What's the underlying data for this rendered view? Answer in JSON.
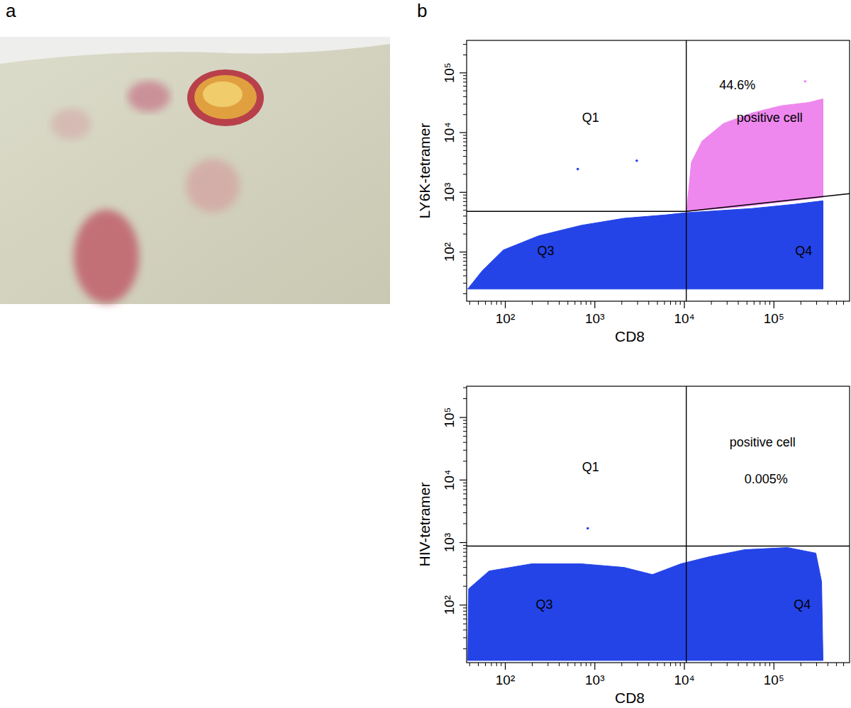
{
  "panel_labels": [
    "a",
    "b"
  ],
  "chart_data": [
    {
      "type": "scatter",
      "xlabel": "CD8",
      "ylabel": "LY6K-tetramer",
      "log": true,
      "xlim": [
        37,
        700000
      ],
      "ylim": [
        15,
        350000
      ],
      "xticks": [
        {
          "value": 100,
          "label": "10²"
        },
        {
          "value": 1000,
          "label": "10³"
        },
        {
          "value": 10000,
          "label": "10⁴"
        },
        {
          "value": 100000,
          "label": "10⁵"
        }
      ],
      "yticks": [
        {
          "value": 100,
          "label": "10²"
        },
        {
          "value": 1000,
          "label": "10³"
        },
        {
          "value": 10000,
          "label": "10⁴"
        },
        {
          "value": 100000,
          "label": "10⁵"
        }
      ],
      "gate_x": 10500,
      "gate_y_left": 480,
      "gate_y_right": [
        480,
        950
      ],
      "regions": [
        {
          "color": "#2444e8",
          "x": [
            38,
            55,
            95,
            236,
            706,
            2113,
            6340,
            10570,
            18970,
            56750,
            169800,
            353000,
            353000,
            353000
          ],
          "y": [
            24,
            48,
            108,
            187,
            280,
            367,
            420,
            456,
            481,
            536,
            631,
            722,
            124,
            24
          ]
        },
        {
          "color": "#ee88ee",
          "x": [
            10570,
            12000,
            15800,
            27350,
            56750,
            117800,
            244900,
            353000,
            353000,
            117800,
            39360
          ],
          "y": [
            481,
            3206,
            7230,
            14220,
            21330,
            27990,
            32060,
            36730,
            827,
            684,
            566
          ]
        }
      ],
      "series": [
        {
          "color": "#2444e8",
          "marker": "dot",
          "x": [
            645,
            2940
          ],
          "y": [
            2445,
            3380
          ]
        },
        {
          "color": "#ee88ee",
          "marker": "dot",
          "x": [
            223000
          ],
          "y": [
            72300
          ]
        }
      ],
      "annotations": [
        {
          "text": "Q1",
          "x": 895,
          "y": 17200
        },
        {
          "text": "44.6%",
          "x": 39000,
          "y": 59700
        },
        {
          "text": "positive cell",
          "x": 89600,
          "y": 17200
        },
        {
          "text": "Q3",
          "x": 283,
          "y": 100
        },
        {
          "text": "Q4",
          "x": 215000,
          "y": 100
        }
      ]
    },
    {
      "type": "scatter",
      "xlabel": "CD8",
      "ylabel": "HIV-tetramer",
      "log": true,
      "xlim": [
        37,
        700000
      ],
      "ylim": [
        12,
        316000
      ],
      "xticks": [
        {
          "value": 100,
          "label": "10²"
        },
        {
          "value": 1000,
          "label": "10³"
        },
        {
          "value": 10000,
          "label": "10⁴"
        },
        {
          "value": 100000,
          "label": "10⁵"
        }
      ],
      "yticks": [
        {
          "value": 100,
          "label": "10²"
        },
        {
          "value": 1000,
          "label": "10³"
        },
        {
          "value": 10000,
          "label": "10⁴"
        },
        {
          "value": 100000,
          "label": "10⁵"
        }
      ],
      "gate_x": 10500,
      "gate_y_left": 880,
      "gate_y_right": [
        880,
        880
      ],
      "regions": [
        {
          "color": "#2444e8",
          "x": [
            38,
            39,
            66,
            197,
            706,
            2113,
            4395,
            9120,
            18970,
            47300,
            141600,
            293900,
            340400,
            353000
          ],
          "y": [
            13,
            182,
            351,
            456,
            456,
            400,
            308,
            456,
            593,
            769,
            832,
            676,
            237,
            13
          ]
        }
      ],
      "series": [
        {
          "color": "#2444e8",
          "marker": "dot",
          "x": [
            833
          ],
          "y": [
            1690
          ]
        }
      ],
      "annotations": [
        {
          "text": "Q1",
          "x": 895,
          "y": 15600
        },
        {
          "text": "positive cell",
          "x": 74600,
          "y": 39000
        },
        {
          "text": "0.005%",
          "x": 81800,
          "y": 10000
        },
        {
          "text": "Q3",
          "x": 273,
          "y": 100
        },
        {
          "text": "Q4",
          "x": 207000,
          "y": 100
        }
      ]
    }
  ]
}
